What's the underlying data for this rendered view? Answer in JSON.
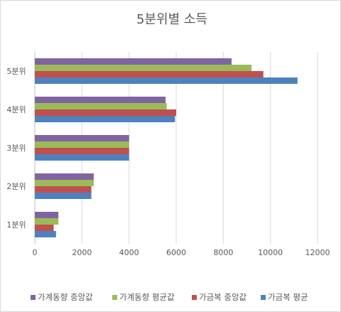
{
  "chart_data": {
    "type": "bar",
    "orientation": "horizontal",
    "title": "5분위별 소득",
    "xlabel": "",
    "ylabel": "",
    "categories": [
      "1분위",
      "2분위",
      "3분위",
      "4분위",
      "5분위"
    ],
    "xlim": [
      0,
      12000
    ],
    "xticks": [
      0,
      2000,
      4000,
      6000,
      8000,
      10000,
      12000
    ],
    "grid": true,
    "legend_position": "bottom",
    "series": [
      {
        "name": "가금복 평균",
        "color": "#4f81bd",
        "values": [
          900,
          2400,
          4000,
          5950,
          11150
        ]
      },
      {
        "name": "가금복 중앙값",
        "color": "#c0504d",
        "values": [
          800,
          2400,
          4000,
          6000,
          9700
        ]
      },
      {
        "name": "가계동향 평균값",
        "color": "#9bbb59",
        "values": [
          1000,
          2500,
          4000,
          5600,
          9200
        ]
      },
      {
        "name": "가계동향 중앙값",
        "color": "#8064a2",
        "values": [
          1000,
          2500,
          4000,
          5550,
          8350
        ]
      }
    ],
    "legend_order": [
      3,
      2,
      1,
      0
    ]
  }
}
